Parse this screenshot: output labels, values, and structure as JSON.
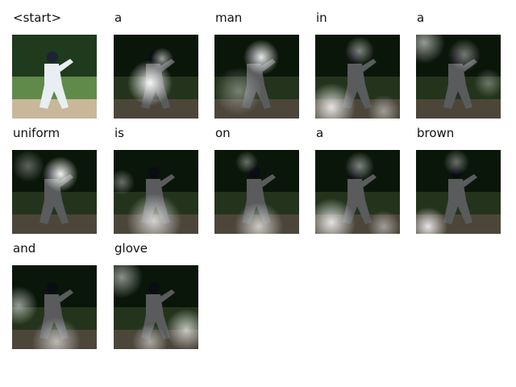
{
  "tokens": [
    {
      "word": "<start>",
      "attention": "none"
    },
    {
      "word": "a",
      "attention": "center-body"
    },
    {
      "word": "man",
      "attention": "upper-right-head"
    },
    {
      "word": "in",
      "attention": "bottom-band-left"
    },
    {
      "word": "a",
      "attention": "top-left-and-right-glow"
    },
    {
      "word": "uniform",
      "attention": "upper-center-torso"
    },
    {
      "word": "is",
      "attention": "bottom-band"
    },
    {
      "word": "on",
      "attention": "bottom-band-center"
    },
    {
      "word": "a",
      "attention": "bottom-band-left"
    },
    {
      "word": "brown",
      "attention": "bottom-left-spot"
    },
    {
      "word": "and",
      "attention": "left-edge-and-bottom"
    },
    {
      "word": "glove",
      "attention": "top-left-and-bottom-right"
    }
  ],
  "colors": {
    "grass": "#5f8a4a",
    "dirt": "#c9b79a",
    "trees": "#1f3a1c",
    "uniform": "#e9eef2",
    "dim_overlay": "#000000",
    "attention_glow": "#ffffff"
  }
}
